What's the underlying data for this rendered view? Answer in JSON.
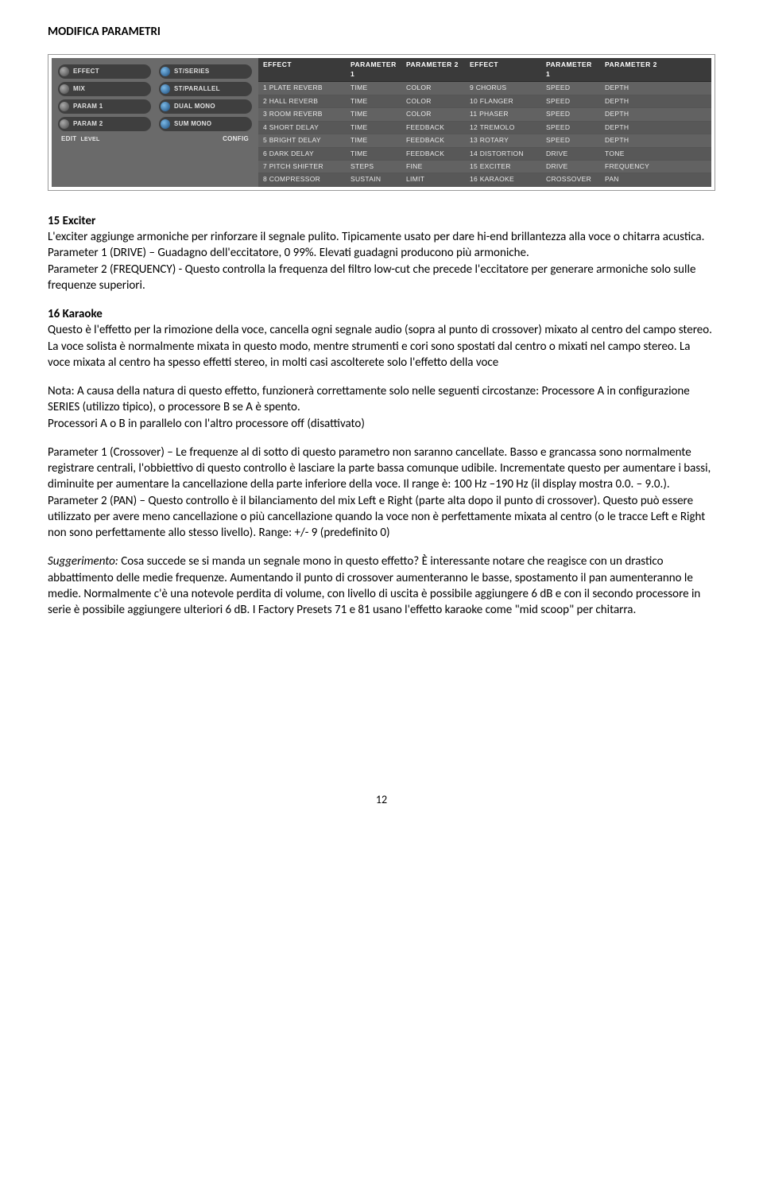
{
  "header": {
    "title": "MODIFICA PARAMETRI"
  },
  "panel": {
    "left_knobs": [
      {
        "label": "EFFECT",
        "blue": false
      },
      {
        "label": "ST/SERIES",
        "blue": true
      },
      {
        "label": "MIX",
        "blue": false
      },
      {
        "label": "ST/PARALLEL",
        "blue": true
      },
      {
        "label": "PARAM 1",
        "blue": false
      },
      {
        "label": "DUAL MONO",
        "blue": true
      },
      {
        "label": "PARAM 2",
        "blue": false
      },
      {
        "label": "SUM MONO",
        "blue": true
      }
    ],
    "left_footer": {
      "edit": "EDIT",
      "level": "LEVEL",
      "config": "CONFIG"
    },
    "headers": [
      "EFFECT",
      "PARAMETER 1",
      "PARAMETER 2",
      "EFFECT",
      "PARAMETER 1",
      "PARAMETER 2"
    ],
    "rows": [
      [
        "1 PLATE REVERB",
        "TIME",
        "COLOR",
        "9 CHORUS",
        "SPEED",
        "DEPTH"
      ],
      [
        "2 HALL REVERB",
        "TIME",
        "COLOR",
        "10 FLANGER",
        "SPEED",
        "DEPTH"
      ],
      [
        "3 ROOM REVERB",
        "TIME",
        "COLOR",
        "11 PHASER",
        "SPEED",
        "DEPTH"
      ],
      [
        "4 SHORT DELAY",
        "TIME",
        "FEEDBACK",
        "12 TREMOLO",
        "SPEED",
        "DEPTH"
      ],
      [
        "5 BRIGHT DELAY",
        "TIME",
        "FEEDBACK",
        "13 ROTARY",
        "SPEED",
        "DEPTH"
      ],
      [
        "6 DARK DELAY",
        "TIME",
        "FEEDBACK",
        "14 DISTORTION",
        "DRIVE",
        "TONE"
      ],
      [
        "7 PITCH SHIFTER",
        "STEPS",
        "FINE",
        "15 EXCITER",
        "DRIVE",
        "FREQUENCY"
      ],
      [
        "8 COMPRESSOR",
        "SUSTAIN",
        "LIMIT",
        "16 KARAOKE",
        "CROSSOVER",
        "PAN"
      ]
    ]
  },
  "s15": {
    "title": "15 Exciter",
    "p1": "L'exciter aggiunge armoniche per rinforzare il segnale pulito. Tipicamente usato per dare hi-end brillantezza alla voce o chitarra acustica.",
    "p2": "Parameter 1 (DRIVE) – Guadagno dell'eccitatore, 0 99%. Elevati guadagni producono più armoniche.",
    "p3": "Parameter 2 (FREQUENCY) - Questo controlla la frequenza del filtro low-cut che precede l'eccitatore per generare armoniche solo sulle frequenze superiori."
  },
  "s16": {
    "title": "16 Karaoke",
    "p1": "Questo è l'effetto per la rimozione della voce, cancella ogni segnale audio (sopra al punto di crossover) mixato al centro del campo stereo. La voce solista è normalmente mixata in questo modo, mentre strumenti e cori sono spostati dal centro o mixati nel campo stereo. La voce mixata al centro ha spesso effetti stereo, in molti casi ascolterete solo l'effetto della voce",
    "note1": "Nota: A causa della natura di questo effetto, funzionerà correttamente solo nelle seguenti circostanze: Processore A in configurazione SERIES (utilizzo tipico), o processore B se A è spento.",
    "note2": "Processori A o B in parallelo con l'altro processore off (disattivato)",
    "param1": "Parameter 1 (Crossover) – Le frequenze al di sotto di questo parametro non saranno cancellate. Basso e grancassa sono normalmente registrare centrali, l'obbiettivo di questo controllo è lasciare la parte bassa comunque udibile. Incrementate questo per aumentare i bassi, diminuite per aumentare la cancellazione della parte inferiore della voce. Il range è: 100 Hz –190 Hz (il display mostra 0.0. – 9.0.).",
    "param2": "Parameter 2 (PAN) – Questo controllo è il bilanciamento del mix Left e Right (parte alta dopo il punto di crossover). Questo può essere utilizzato per avere meno cancellazione o più cancellazione quando la voce non è perfettamente mixata al centro (o le tracce Left e Right non sono perfettamente allo stesso livello). Range: +/- 9 (predefinito 0)",
    "tip_label": "Suggerimento:",
    "tip": " Cosa succede se si manda un segnale mono in questo effetto? È interessante notare che reagisce con un drastico abbattimento delle medie frequenze. Aumentando il punto di crossover aumenteranno le basse, spostamento il pan aumenteranno le medie. Normalmente c'è una notevole perdita di volume, con livello di uscita è possibile aggiungere 6 dB e con il secondo processore in serie è possibile aggiungere ulteriori 6 dB. I Factory Presets 71 e 81 usano l'effetto karaoke come \"mid scoop\" per chitarra."
  },
  "page_number": "12"
}
